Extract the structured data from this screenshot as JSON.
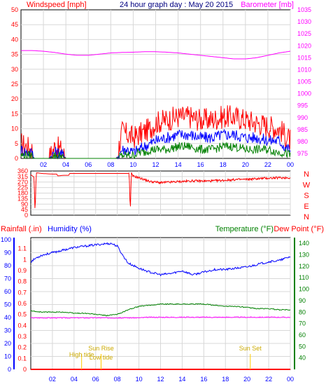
{
  "chart_data": [
    {
      "type": "line",
      "title": "24 hour graph day : May 20 2015",
      "ylabel": "Windspeed [mph]",
      "y2label": "Barometer [mb]",
      "x_ticks": [
        "02",
        "04",
        "06",
        "08",
        "10",
        "12",
        "14",
        "16",
        "18",
        "20",
        "22",
        "00"
      ],
      "ylim": [
        0,
        50
      ],
      "y_ticks": [
        "0",
        "5",
        "10",
        "15",
        "20",
        "25",
        "30",
        "35",
        "40",
        "45",
        "50"
      ],
      "y2lim": [
        975,
        1035
      ],
      "y2_ticks": [
        "975",
        "980",
        "985",
        "990",
        "995",
        "1000",
        "1005",
        "1010",
        "1015",
        "1020",
        "1025",
        "1030",
        "1035"
      ],
      "grid": true,
      "series": [
        {
          "name": "Windspeed [mph]",
          "axis": "left",
          "color": "#ff0000",
          "x": [
            0.0,
            0.5,
            1.0,
            1.2,
            2.5,
            3.0,
            3.5,
            4.0,
            4.5,
            8.5,
            9.0,
            9.5,
            10.0,
            10.5,
            11.0,
            11.5,
            12.0,
            13.0,
            14.0,
            15.0,
            16.0,
            17.0,
            18.0,
            19.0,
            20.0,
            21.0,
            22.0,
            23.0,
            23.5,
            24.0
          ],
          "y": [
            5,
            4,
            3,
            0,
            0,
            4,
            3,
            0,
            0,
            0,
            9,
            8,
            7,
            8,
            9,
            10,
            12,
            13,
            14,
            14,
            13,
            13,
            14,
            14,
            13,
            12,
            11,
            10,
            8,
            6
          ]
        },
        {
          "name": "Wind Average",
          "axis": "left",
          "color": "#0000ff",
          "x": [
            0.0,
            0.5,
            1.0,
            1.2,
            2.5,
            3.0,
            3.5,
            4.0,
            4.5,
            8.5,
            9.0,
            9.5,
            10.0,
            10.5,
            11.0,
            11.5,
            12.0,
            13.0,
            14.0,
            15.0,
            16.0,
            17.0,
            18.0,
            19.0,
            20.0,
            21.0,
            22.0,
            23.0,
            23.5,
            24.0
          ],
          "y": [
            3,
            2,
            2,
            0,
            0,
            2,
            2,
            0,
            0,
            0,
            3,
            3,
            2,
            3,
            4,
            5,
            6,
            7,
            8,
            8,
            7,
            7,
            8,
            8,
            7,
            7,
            6,
            6,
            4,
            3
          ]
        },
        {
          "name": "Wind Gust",
          "axis": "left",
          "color": "#008000",
          "x": [
            0.0,
            0.5,
            1.0,
            1.2,
            2.5,
            3.0,
            3.5,
            4.0,
            4.5,
            8.5,
            9.0,
            9.5,
            10.0,
            10.5,
            11.0,
            11.5,
            12.0,
            13.0,
            14.0,
            15.0,
            16.0,
            17.0,
            18.0,
            19.0,
            20.0,
            21.0,
            22.0,
            23.0,
            23.5,
            24.0
          ],
          "y": [
            1,
            1,
            1,
            0,
            0,
            1,
            1,
            0,
            0,
            0,
            1,
            1,
            1,
            2,
            2,
            3,
            3,
            3,
            4,
            4,
            3,
            3,
            4,
            4,
            3,
            3,
            3,
            2,
            2,
            1
          ]
        },
        {
          "name": "Barometer [mb]",
          "axis": "right",
          "color": "#ff00ff",
          "x": [
            0,
            1,
            2,
            3,
            4,
            5,
            6,
            7,
            8,
            9,
            10,
            11,
            12,
            13,
            14,
            15,
            16,
            17,
            18,
            19,
            20,
            21,
            22,
            23,
            24
          ],
          "y": [
            1018,
            1018,
            1017.7,
            1017.2,
            1016.5,
            1016,
            1016,
            1016.5,
            1017,
            1017.2,
            1017.3,
            1017.5,
            1017.5,
            1017.3,
            1017,
            1016.5,
            1016,
            1015.5,
            1015,
            1014.5,
            1014.5,
            1015,
            1016,
            1017,
            1017.7
          ]
        }
      ]
    },
    {
      "type": "line",
      "x_ticks": [
        "02",
        "04",
        "06",
        "08",
        "10",
        "12",
        "14",
        "16",
        "18",
        "20",
        "22",
        "00"
      ],
      "ylim": [
        0,
        360
      ],
      "y_ticks": [
        "0",
        "45",
        "90",
        "135",
        "180",
        "225",
        "270",
        "315",
        "360"
      ],
      "direction_labels": [
        "N",
        "W",
        "S",
        "E",
        "N"
      ],
      "grid": true,
      "series": [
        {
          "name": "Wind Direction",
          "color": "#ff0000",
          "x": [
            0.0,
            0.3,
            0.4,
            0.5,
            0.6,
            1.0,
            2.0,
            2.4,
            2.5,
            3.0,
            3.5,
            3.6,
            4.0,
            5.0,
            6.0,
            7.0,
            8.0,
            9.0,
            9.1,
            9.2,
            9.3,
            9.4,
            10.0,
            10.5,
            11.0,
            12.0,
            13.0,
            14.0,
            15.0,
            16.0,
            17.0,
            18.0,
            19.0,
            20.0,
            21.0,
            22.0,
            23.0,
            24.0
          ],
          "y": [
            330,
            310,
            10,
            345,
            345,
            340,
            335,
            335,
            320,
            325,
            325,
            340,
            340,
            340,
            340,
            340,
            340,
            340,
            345,
            20,
            345,
            320,
            305,
            290,
            275,
            265,
            270,
            275,
            280,
            278,
            280,
            285,
            290,
            292,
            298,
            302,
            305,
            305
          ]
        }
      ]
    },
    {
      "type": "line",
      "x_ticks": [
        "02",
        "04",
        "06",
        "08",
        "10",
        "12",
        "14",
        "16",
        "18",
        "20",
        "22",
        "00"
      ],
      "ylabel_rain": "Rainfall (.in)",
      "ylabel_humidity": "Humidity (%)",
      "y2label_temp": "Temperature (°F)",
      "y2label_dew": "Dew Point (°F)",
      "rain_ticks": [
        "0",
        "0.1",
        "0.2",
        "0.3",
        "0.4",
        "0.5",
        "0.6",
        "0.7",
        "0.8",
        "0.9",
        "1",
        "1.1"
      ],
      "rain_ylim": [
        0,
        1.2
      ],
      "humidity_ticks": [
        "0",
        "10",
        "20",
        "30",
        "40",
        "50",
        "60",
        "70",
        "80",
        "90",
        "100"
      ],
      "humidity_ylim": [
        0,
        100
      ],
      "temp_ticks": [
        "40",
        "50",
        "60",
        "70",
        "80",
        "90",
        "100",
        "110",
        "120",
        "130",
        "140"
      ],
      "temp_ylim": [
        30,
        145
      ],
      "grid": true,
      "annotations": [
        {
          "text": "Sun Rise",
          "x": 6.5
        },
        {
          "text": "Low tide",
          "x": 6.5
        },
        {
          "text": "High tide",
          "x": 4.7
        },
        {
          "text": "Sun Set",
          "x": 20.3
        }
      ],
      "series": [
        {
          "name": "Humidity (%)",
          "axis": "humidity",
          "color": "#0000ff",
          "x": [
            0,
            0.5,
            1,
            2,
            3,
            4,
            5,
            6,
            7,
            7.5,
            8,
            8.5,
            9,
            10,
            11,
            12,
            13,
            14,
            15,
            16,
            17,
            18,
            19,
            20,
            21,
            22,
            23,
            24
          ],
          "y": [
            83,
            86,
            88,
            90,
            92,
            94,
            95,
            96,
            97,
            97,
            95,
            88,
            82,
            78,
            75,
            73,
            74,
            76,
            73,
            75,
            77,
            77,
            78,
            79,
            81,
            83,
            84,
            87
          ]
        },
        {
          "name": "Temperature (°F)",
          "axis": "temp",
          "color": "#008000",
          "x": [
            0,
            1,
            2,
            3,
            4,
            5,
            6,
            7,
            8,
            9,
            10,
            11,
            12,
            13,
            14,
            15,
            16,
            17,
            18,
            19,
            20,
            21,
            22,
            23,
            24
          ],
          "y": [
            81,
            80,
            80,
            80,
            79,
            79,
            78,
            77,
            78,
            82,
            85,
            86,
            87,
            87,
            87,
            87,
            87,
            86,
            85,
            85,
            84,
            83,
            83,
            82,
            82
          ]
        },
        {
          "name": "Dew Point (°F)",
          "axis": "temp",
          "color": "#ff00ff",
          "x": [
            0,
            1,
            2,
            3,
            4,
            5,
            6,
            7,
            8,
            9,
            10,
            11,
            12,
            13,
            14,
            15,
            16,
            17,
            18,
            19,
            20,
            21,
            22,
            23,
            24
          ],
          "y": [
            75,
            75,
            75,
            75,
            75,
            75,
            75,
            75,
            75,
            75,
            75,
            75.5,
            75.5,
            75.5,
            75.5,
            75.5,
            75.5,
            75.5,
            75.5,
            75.5,
            75.5,
            75.5,
            75.5,
            75.5,
            75.5
          ]
        },
        {
          "name": "Rainfall (.in)",
          "axis": "rain",
          "color": "#ff0000",
          "x": [
            0,
            24
          ],
          "y": [
            0,
            0
          ]
        }
      ]
    }
  ]
}
